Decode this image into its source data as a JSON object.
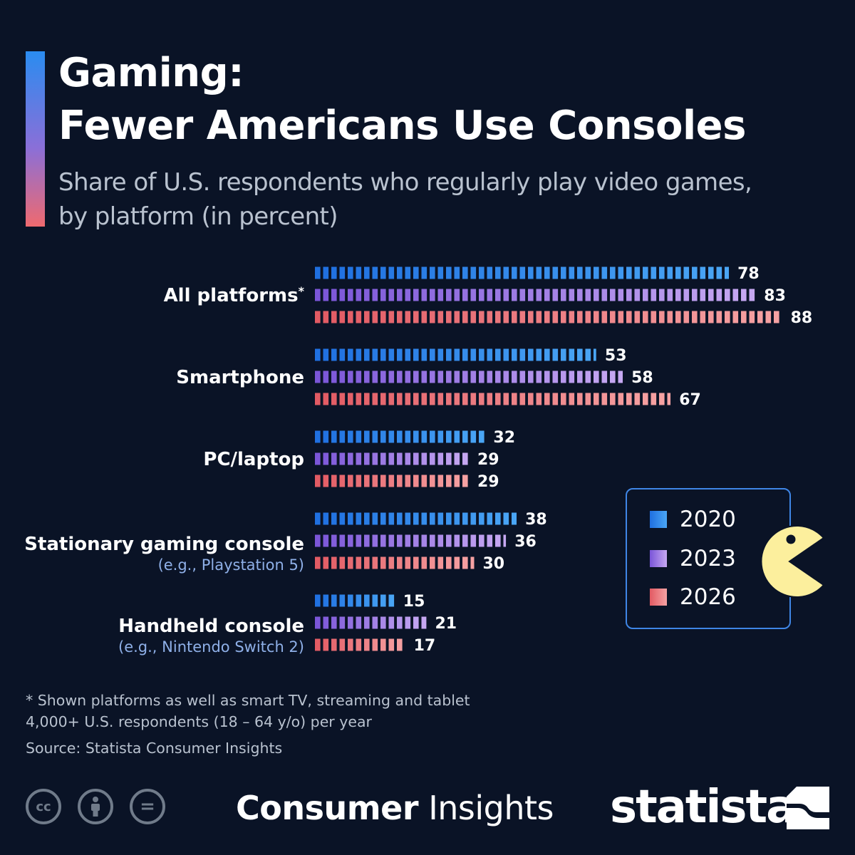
{
  "header": {
    "title_line1": "Gaming:",
    "title_line2": "Fewer Americans Use Consoles",
    "subtitle_line1": "Share of U.S. respondents who regularly play video games,",
    "subtitle_line2": "by platform (in percent)"
  },
  "colors": {
    "background": "#0a1326",
    "series_2020": [
      "#1f6fe0",
      "#4aa6f5"
    ],
    "series_2023": [
      "#7a55d8",
      "#c7a9f2"
    ],
    "series_2026": [
      "#e25a63",
      "#f6a3a4"
    ],
    "subtitle": "#b9c2cf",
    "category_note": "#8fb0e8",
    "pacman": "#fcef9d"
  },
  "chart_data": {
    "type": "bar",
    "orientation": "horizontal",
    "categories": [
      {
        "label": "All platforms",
        "marker": "*",
        "note": ""
      },
      {
        "label": "Smartphone",
        "marker": "",
        "note": ""
      },
      {
        "label": "PC/laptop",
        "marker": "",
        "note": ""
      },
      {
        "label": "Stationary gaming console",
        "marker": "",
        "note": "(e.g., Playstation 5)"
      },
      {
        "label": "Handheld console",
        "marker": "",
        "note": "(e.g., Nintendo Switch 2)"
      }
    ],
    "series": [
      {
        "name": "2020",
        "values": [
          78,
          53,
          32,
          38,
          15
        ]
      },
      {
        "name": "2023",
        "values": [
          83,
          58,
          29,
          36,
          21
        ]
      },
      {
        "name": "2026",
        "values": [
          88,
          67,
          29,
          30,
          17
        ]
      }
    ],
    "unit": "percent",
    "xlim": [
      0,
      88
    ],
    "grid": false,
    "legend_position": "right"
  },
  "legend": {
    "items": [
      {
        "label": "2020",
        "color_key": "series_2020"
      },
      {
        "label": "2023",
        "color_key": "series_2023"
      },
      {
        "label": "2026",
        "color_key": "series_2026"
      }
    ],
    "decoration_icon": "pacman-icon"
  },
  "footer": {
    "footnote_line1": "* Shown platforms as well as smart TV, streaming and tablet",
    "footnote_line2": "4,000+ U.S. respondents (18 – 64 y/o) per year",
    "source": "Source: Statista Consumer Insights",
    "license_icons": [
      {
        "name": "cc-icon",
        "glyph": "cc"
      },
      {
        "name": "attribution-icon",
        "glyph": ""
      },
      {
        "name": "no-derivatives-icon",
        "glyph": "="
      }
    ],
    "brand_bold": "Consumer",
    "brand_light": "Insights",
    "logo_text": "statista"
  }
}
